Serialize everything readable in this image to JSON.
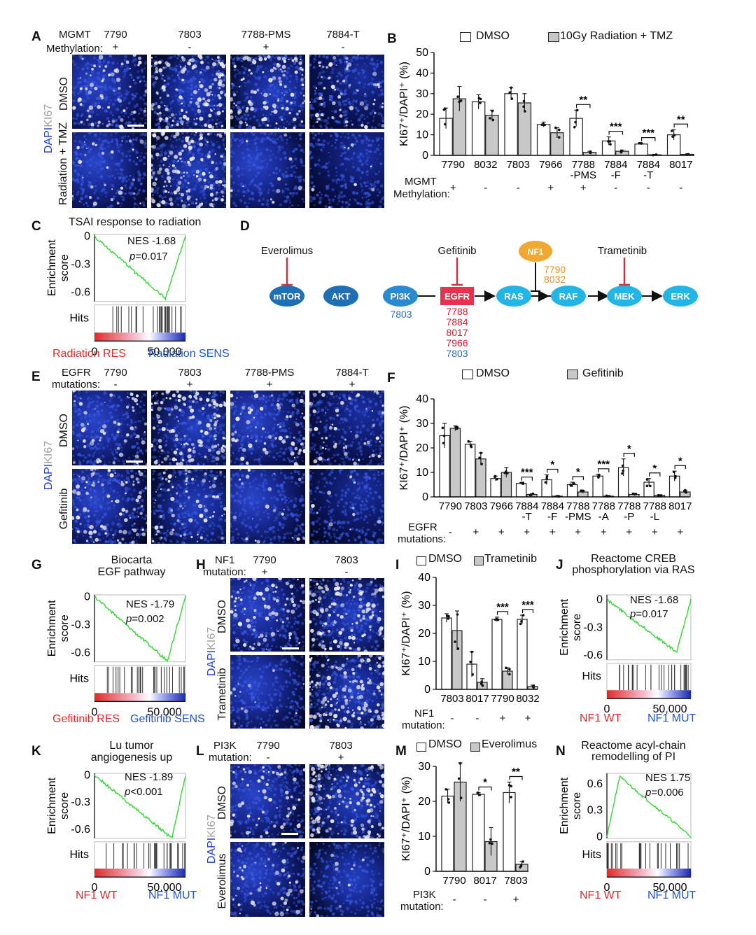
{
  "colors": {
    "dapi": "#1f3fd6",
    "ki67": "#b8b8b8",
    "res": "#e02a2a",
    "sens": "#1f55c8",
    "gsea": "#33d633",
    "cellbg": "#06092e",
    "grayBar": "#c8c8c8",
    "nf1": "#f0a830",
    "egfr": "#e8304f",
    "mekNode": "#22b5e5",
    "darkNode": "#1f6fb5"
  },
  "panelA": {
    "letter": "A",
    "header": "MGMT",
    "rowhead": "Methylation:",
    "samples": [
      {
        "name": "7790",
        "sign": "+"
      },
      {
        "name": "7803",
        "sign": "-"
      },
      {
        "name": "7788-PMS",
        "sign": "+"
      },
      {
        "name": "7884-T",
        "sign": "-"
      }
    ],
    "rows": [
      "DMSO",
      "Radiation + TMZ"
    ],
    "stain_dapi": "DAPI",
    "stain_ki67": "KI67"
  },
  "panelB": {
    "letter": "B",
    "legend": [
      "DMSO",
      "10Gy Radiation + TMZ"
    ],
    "rowhead": "MGMT",
    "rowhead2": "Methylation:",
    "signs": [
      "+",
      "-",
      "-",
      "+",
      "+",
      "-",
      "-",
      "-"
    ]
  },
  "panelC": {
    "letter": "C",
    "title": "TSAI response to radiation",
    "nes": "NES -1.68",
    "p_label": "p",
    "p_value": "=0.017",
    "res": "Radiation RES",
    "sens": "Radiation SENS"
  },
  "panelD": {
    "letter": "D",
    "nodes": [
      "mTOR",
      "AKT",
      "PI3K",
      "EGFR",
      "RAS",
      "RAF",
      "MEK",
      "ERK",
      "NF1"
    ],
    "drugs": [
      "Everolimus",
      "Gefitinib",
      "Trametinib"
    ],
    "pi3k_sample": "7803",
    "egfr_samples": [
      "7788",
      "7884",
      "8017",
      "7966"
    ],
    "egfr_samples_blue": [
      "7803"
    ],
    "nf1_samples": [
      "7790",
      "8032"
    ]
  },
  "panelE": {
    "letter": "E",
    "header": "EGFR",
    "rowhead": "mutations:",
    "samples": [
      {
        "name": "7790",
        "sign": "-"
      },
      {
        "name": "7803",
        "sign": "+"
      },
      {
        "name": "7788-PMS",
        "sign": "+"
      },
      {
        "name": "7884-T",
        "sign": "+"
      }
    ],
    "rows": [
      "DMSO",
      "Gefitinib"
    ],
    "stain_dapi": "DAPI",
    "stain_ki67": "KI67"
  },
  "panelF": {
    "letter": "F",
    "legend": [
      "DMSO",
      "Gefitinib"
    ],
    "rowhead": "EGFR",
    "rowhead2": "mutations:",
    "signs": [
      "-",
      "+",
      "+",
      "+",
      "+",
      "+",
      "+",
      "+",
      "+",
      "+"
    ]
  },
  "panelG": {
    "letter": "G",
    "title1": "Biocarta",
    "title2": "EGF pathway",
    "nes": "NES -1.79",
    "p_label": "p",
    "p_value": "=0.002",
    "res": "Gefitinib RES",
    "sens": "Gefitinib SENS"
  },
  "panelH": {
    "letter": "H",
    "header": "NF1",
    "rowhead": "mutation:",
    "samples": [
      {
        "name": "7790",
        "sign": "+"
      },
      {
        "name": "7803",
        "sign": "-"
      }
    ],
    "rows": [
      "DMSO",
      "Trametinib"
    ],
    "stain_dapi": "DAPI",
    "stain_ki67": "KI67"
  },
  "panelI": {
    "letter": "I",
    "legend": [
      "DMSO",
      "Trametinib"
    ],
    "rowhead": "NF1",
    "rowhead2": "mutation:",
    "signs": [
      "-",
      "-",
      "+",
      "+"
    ]
  },
  "panelJ": {
    "letter": "J",
    "title1": "Reactome CREB",
    "title2": "phosphorylation via RAS",
    "nes": "NES -1.68",
    "p_label": "p",
    "p_value": "=0.017",
    "res": "NF1 WT",
    "sens": "NF1 MUT"
  },
  "panelK": {
    "letter": "K",
    "title1": "Lu tumor",
    "title2": "angiogenesis up",
    "nes": "NES -1.89",
    "p_label": "p",
    "p_value": "<0.001",
    "res": "NF1 WT",
    "sens": "NF1 MUT"
  },
  "panelL": {
    "letter": "L",
    "header": "PI3K",
    "rowhead": "mutation:",
    "samples": [
      {
        "name": "7790",
        "sign": "-"
      },
      {
        "name": "7803",
        "sign": "+"
      }
    ],
    "rows": [
      "DMSO",
      "Everolimus"
    ],
    "stain_dapi": "DAPI",
    "stain_ki67": "KI67"
  },
  "panelM": {
    "letter": "M",
    "legend": [
      "DMSO",
      "Everolimus"
    ],
    "rowhead": "PI3K",
    "rowhead2": "mutation:",
    "signs": [
      "-",
      "-",
      "+"
    ]
  },
  "panelN": {
    "letter": "N",
    "title1": "Reactome acyl-chain",
    "title2": "remodelling of PI",
    "nes": "NES 1.75",
    "p_label": "p",
    "p_value": "=0.006",
    "res": "NF1 WT",
    "sens": "NF1 MUT"
  },
  "chart_data": [
    {
      "id": "B",
      "type": "bar",
      "ylabel": "KI67⁺/DAPI⁺ (%)",
      "ylim": [
        0,
        50
      ],
      "yticks": [
        0,
        10,
        20,
        30,
        40,
        50
      ],
      "categories": [
        "7790",
        "8032",
        "7803",
        "7966",
        "7788\n-PMS",
        "7884\n-F",
        "7884\n-T",
        "8017"
      ],
      "series": [
        {
          "name": "DMSO",
          "values": [
            18,
            26,
            30,
            15,
            18,
            7,
            5.5,
            10
          ],
          "errors": [
            5,
            3.5,
            3,
            1.2,
            4,
            2,
            0.4,
            2.5
          ]
        },
        {
          "name": "10Gy Radiation + TMZ",
          "values": [
            27.5,
            19.5,
            25.5,
            11,
            1.5,
            2,
            0.3,
            0.5
          ],
          "errors": [
            6,
            2.5,
            4.5,
            2.5,
            0.5,
            0.6,
            0.2,
            0.2
          ]
        }
      ],
      "significance": [
        {
          "index": 4,
          "label": "**"
        },
        {
          "index": 5,
          "label": "***"
        },
        {
          "index": 6,
          "label": "***"
        },
        {
          "index": 7,
          "label": "**"
        }
      ]
    },
    {
      "id": "F",
      "type": "bar",
      "ylabel": "KI67⁺/DAPI⁺ (%)",
      "ylim": [
        0,
        40
      ],
      "yticks": [
        0,
        10,
        20,
        30,
        40
      ],
      "categories": [
        "7790",
        "7803",
        "7966",
        "7884\n-T",
        "7884\n-F",
        "7788\n-PMS",
        "7788\n-A",
        "7788\n-P",
        "7788\n-L",
        "8017"
      ],
      "series": [
        {
          "name": "DMSO",
          "values": [
            25,
            21.5,
            7.5,
            5.5,
            7,
            5,
            8.5,
            12,
            6,
            8.5
          ],
          "errors": [
            5,
            1.2,
            1,
            0.3,
            2,
            1,
            0.7,
            3.5,
            1.5,
            2
          ]
        },
        {
          "name": "Gefitinib",
          "values": [
            28,
            15.5,
            10,
            1,
            0.3,
            2,
            0.3,
            1,
            0.6,
            2
          ],
          "errors": [
            1,
            2.5,
            2,
            0.3,
            0.2,
            0.5,
            0.2,
            0.3,
            0.3,
            0.7
          ]
        }
      ],
      "significance": [
        {
          "index": 3,
          "label": "***"
        },
        {
          "index": 4,
          "label": "*"
        },
        {
          "index": 5,
          "label": "*"
        },
        {
          "index": 6,
          "label": "***"
        },
        {
          "index": 7,
          "label": "*"
        },
        {
          "index": 8,
          "label": "*"
        },
        {
          "index": 9,
          "label": "*"
        }
      ]
    },
    {
      "id": "I",
      "type": "bar",
      "ylabel": "KI67⁺/DAPI⁺ (%)",
      "ylim": [
        0,
        40
      ],
      "yticks": [
        0,
        10,
        20,
        30,
        40
      ],
      "categories": [
        "7803",
        "8017",
        "7790",
        "8032"
      ],
      "series": [
        {
          "name": "DMSO",
          "values": [
            25.5,
            9,
            25,
            25
          ],
          "errors": [
            1.5,
            4.5,
            0.8,
            1.5
          ]
        },
        {
          "name": "Trametinib",
          "values": [
            21,
            2.5,
            6.5,
            1
          ],
          "errors": [
            7,
            1.3,
            1.2,
            0.5
          ]
        }
      ],
      "significance": [
        {
          "index": 2,
          "label": "***"
        },
        {
          "index": 3,
          "label": "***"
        }
      ]
    },
    {
      "id": "M",
      "type": "bar",
      "ylabel": "KI67⁺/DAPI⁺ (%)",
      "ylim": [
        0,
        30
      ],
      "yticks": [
        0,
        10,
        20,
        30
      ],
      "categories": [
        "7790",
        "8017",
        "7803"
      ],
      "series": [
        {
          "name": "DMSO",
          "values": [
            21.5,
            22,
            22.5
          ],
          "errors": [
            2,
            0.5,
            3
          ]
        },
        {
          "name": "Everolimus",
          "values": [
            25.5,
            8.5,
            2
          ],
          "errors": [
            5.5,
            4,
            0.8
          ]
        }
      ],
      "significance": [
        {
          "index": 1,
          "label": "*"
        },
        {
          "index": 2,
          "label": "**"
        }
      ]
    },
    {
      "id": "C",
      "type": "line",
      "ylabel": "Enrichment score",
      "yticks": [
        0,
        -0.3,
        -0.6
      ],
      "ylim": [
        -0.7,
        0.02
      ],
      "xticks": [
        "0",
        "50,000"
      ],
      "hits_label": "Hits",
      "min": -0.67,
      "min_at": 0.78
    },
    {
      "id": "G",
      "type": "line",
      "ylabel": "Enrichment score",
      "yticks": [
        0,
        -0.3,
        -0.6
      ],
      "ylim": [
        -0.7,
        0.02
      ],
      "xticks": [
        "0",
        "50,000"
      ],
      "hits_label": "Hits",
      "min": -0.69,
      "min_at": 0.8
    },
    {
      "id": "J",
      "type": "line",
      "ylabel": "Enrichment score",
      "yticks": [
        0,
        -0.3,
        -0.6
      ],
      "ylim": [
        -0.65,
        0.05
      ],
      "xticks": [
        "0",
        "50,000"
      ],
      "hits_label": "Hits",
      "min": -0.57,
      "min_at": 0.83
    },
    {
      "id": "K",
      "type": "line",
      "ylabel": "Enrichment score",
      "yticks": [
        0,
        -0.3,
        -0.6
      ],
      "ylim": [
        -0.7,
        0.02
      ],
      "xticks": [
        "0",
        "50,000"
      ],
      "hits_label": "Hits",
      "min": -0.7,
      "min_at": 0.85
    },
    {
      "id": "N",
      "type": "line",
      "ylabel": "Enrichment score",
      "yticks": [
        0.6,
        0.3,
        0
      ],
      "ylim": [
        -0.02,
        0.72
      ],
      "xticks": [
        "0",
        "50,000"
      ],
      "hits_label": "Hits",
      "min": 0.68,
      "min_at": 0.15
    }
  ]
}
